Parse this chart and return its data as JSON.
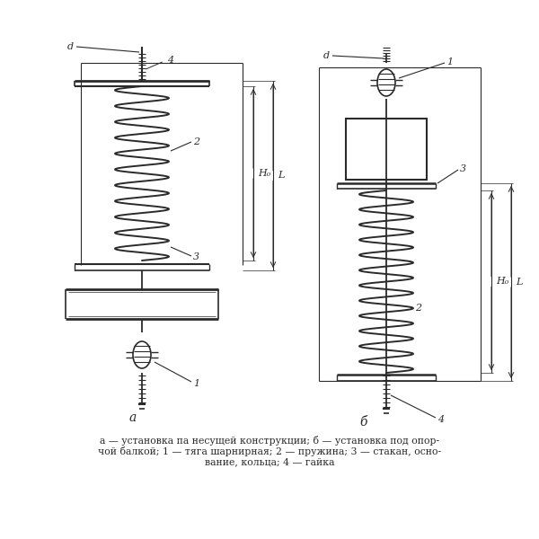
{
  "caption_line1": "а — установка па несущей конструкции; б — установка под опор-",
  "caption_line2": "чой балкой; 1 — тяга шарнирная; 2 — пружина; 3 — стакан, осно-",
  "caption_line3": "вание, кольца; 4 — гайка",
  "bg_color": "#ffffff",
  "line_color": "#2a2a2a"
}
